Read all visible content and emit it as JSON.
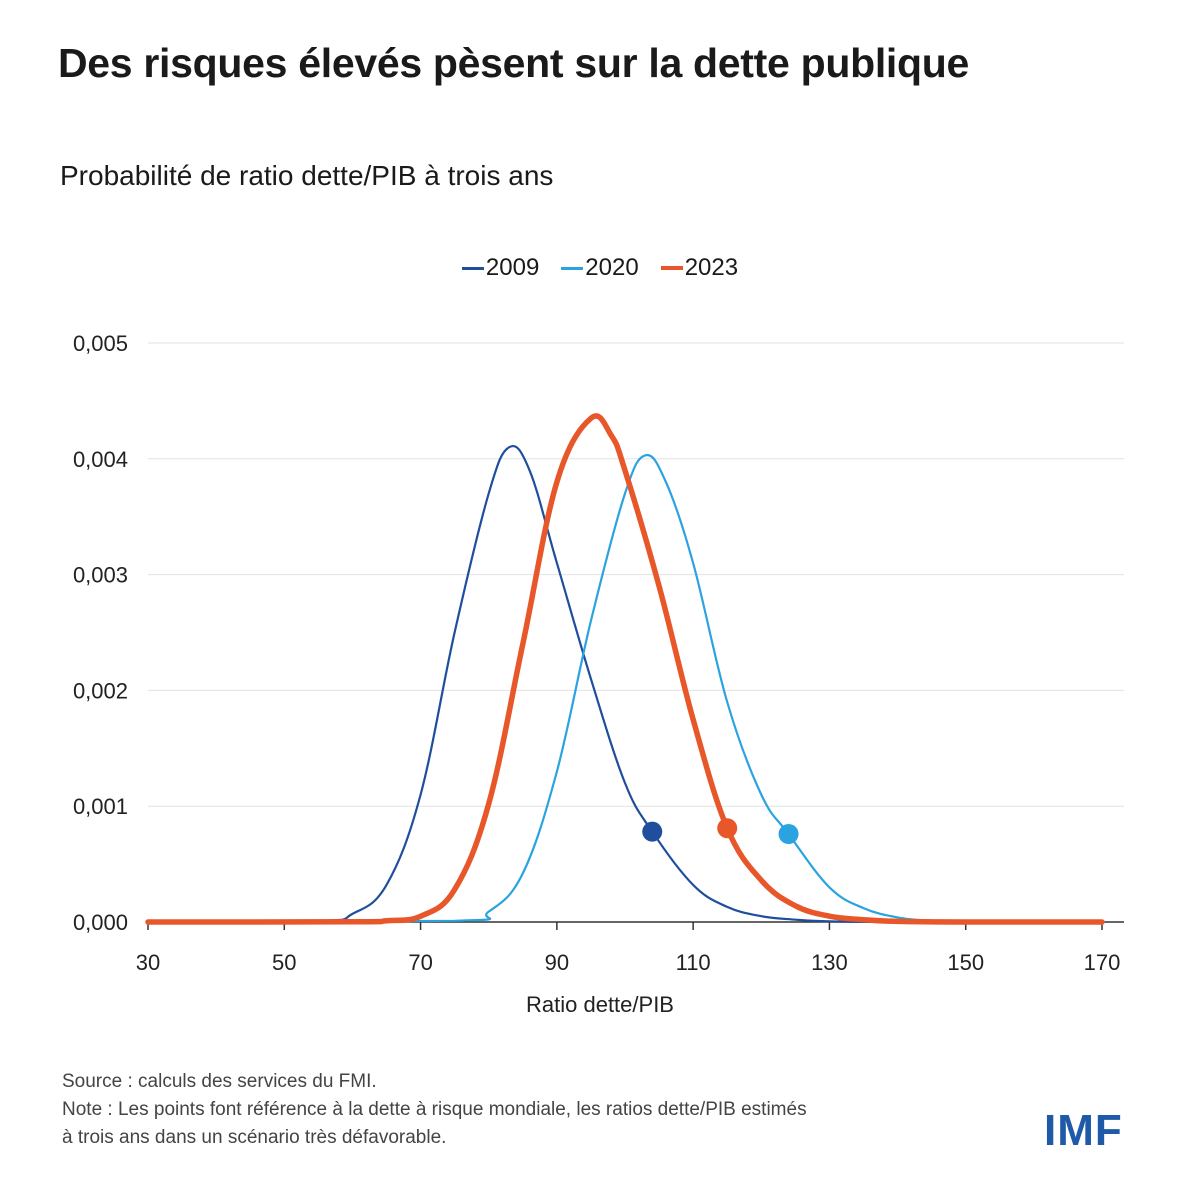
{
  "header": {
    "title": "Des risques élevés pèsent sur la dette publique",
    "subtitle": "Probabilité de ratio dette/PIB à trois ans"
  },
  "footer": {
    "source": "Source : calculs des services du FMI.",
    "note_line1": "Note : Les points font référence à la dette à risque mondiale, les ratios dette/PIB estimés",
    "note_line2": "à trois ans dans un scénario très défavorable.",
    "logo": "IMF"
  },
  "chart_data": {
    "type": "line",
    "xlabel": "Ratio dette/PIB",
    "xlim": [
      30,
      170
    ],
    "ylim": [
      0,
      0.005
    ],
    "xticks": [
      30,
      50,
      70,
      90,
      110,
      130,
      150,
      170
    ],
    "yticks": [
      0,
      0.001,
      0.002,
      0.003,
      0.004,
      0.005
    ],
    "ytick_labels": [
      "0,000",
      "0,001",
      "0,002",
      "0,003",
      "0,004",
      "0,005"
    ],
    "grid": true,
    "legend_position": "top-center",
    "series": [
      {
        "name": "2009",
        "color": "#1f4e9c",
        "x": [
          30,
          55,
          60,
          65,
          70,
          75,
          80,
          83,
          86,
          90,
          95,
          100,
          104,
          110,
          115,
          120,
          125,
          130,
          140,
          150,
          170
        ],
        "y": [
          0,
          1e-05,
          7e-05,
          0.00032,
          0.0011,
          0.0025,
          0.0037,
          0.0041,
          0.0039,
          0.0031,
          0.0021,
          0.0012,
          0.00078,
          0.00032,
          0.00013,
          5e-05,
          2e-05,
          5e-06,
          0,
          0,
          0
        ],
        "marker": {
          "x": 104,
          "y": 0.00078
        }
      },
      {
        "name": "2020",
        "color": "#2aa3e0",
        "x": [
          30,
          75,
          80,
          85,
          90,
          95,
          100,
          103,
          106,
          110,
          115,
          120,
          124,
          130,
          135,
          140,
          145,
          150,
          170
        ],
        "y": [
          0,
          1e-05,
          9e-05,
          0.00042,
          0.0013,
          0.0026,
          0.0037,
          0.00403,
          0.0038,
          0.0031,
          0.0019,
          0.0011,
          0.00076,
          0.0003,
          0.00012,
          4e-05,
          1e-05,
          0,
          0
        ],
        "marker": {
          "x": 124,
          "y": 0.00076
        }
      },
      {
        "name": "2023",
        "color": "#e8572a",
        "x": [
          30,
          60,
          65,
          70,
          75,
          80,
          85,
          90,
          95,
          98,
          100,
          105,
          110,
          115,
          120,
          125,
          130,
          135,
          140,
          150,
          170
        ],
        "y": [
          0,
          2e-06,
          1e-05,
          5e-05,
          0.00028,
          0.00102,
          0.0024,
          0.0038,
          0.00435,
          0.0042,
          0.0039,
          0.0029,
          0.00175,
          0.00081,
          0.00036,
          0.00014,
          5e-05,
          2e-05,
          5e-06,
          0,
          0
        ],
        "marker": {
          "x": 115,
          "y": 0.00081
        }
      }
    ]
  }
}
